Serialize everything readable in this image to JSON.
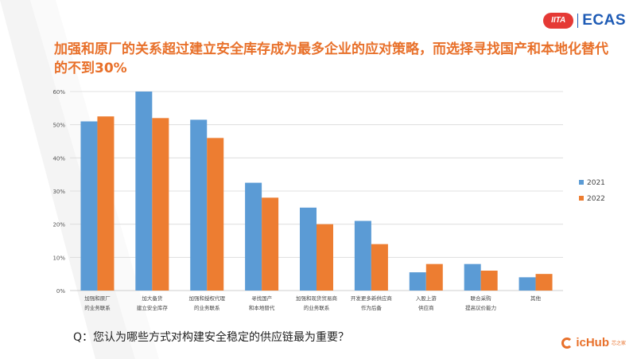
{
  "title": "加强和原厂的关系超过建立安全库存成为最多企业的应对策略，而选择寻找国产和本地化替代的不到30%",
  "logos": {
    "left_badge": "IITA",
    "right": "ECAS",
    "footer": "icHub",
    "footer_sub": "芯之家"
  },
  "question": "Q：您认为哪些方式对构建安全稳定的供应链最为重要？",
  "colors": {
    "s2021": "#5B9BD5",
    "s2022": "#ED7D31",
    "title": "#E8702A",
    "grid": "#D9D9D9"
  },
  "chart_data": {
    "type": "bar",
    "title": "",
    "xlabel": "",
    "ylabel": "",
    "ylim": [
      0,
      60
    ],
    "yticks": [
      "0%",
      "10%",
      "20%",
      "30%",
      "40%",
      "50%",
      "60%"
    ],
    "categories": [
      [
        "加强和原厂",
        "的业务联系"
      ],
      [
        "加大备货",
        "建立安全库存"
      ],
      [
        "加强和授权代理",
        "的业务联系"
      ],
      [
        "寻找国产",
        "和本地替代"
      ],
      [
        "加强和现货贸易商",
        "的业务联系"
      ],
      [
        "开发更多新供应商",
        "作为后备"
      ],
      [
        "入股上游",
        "供应商"
      ],
      [
        "联合采购",
        "提高议价能力"
      ],
      [
        "其他"
      ]
    ],
    "series": [
      {
        "name": "2021",
        "values": [
          51,
          60,
          51.5,
          32.5,
          25,
          21,
          5.5,
          8,
          4
        ]
      },
      {
        "name": "2022",
        "values": [
          52.5,
          52,
          46,
          28,
          20,
          14,
          8,
          6,
          5
        ]
      }
    ],
    "legend_position": "right"
  }
}
